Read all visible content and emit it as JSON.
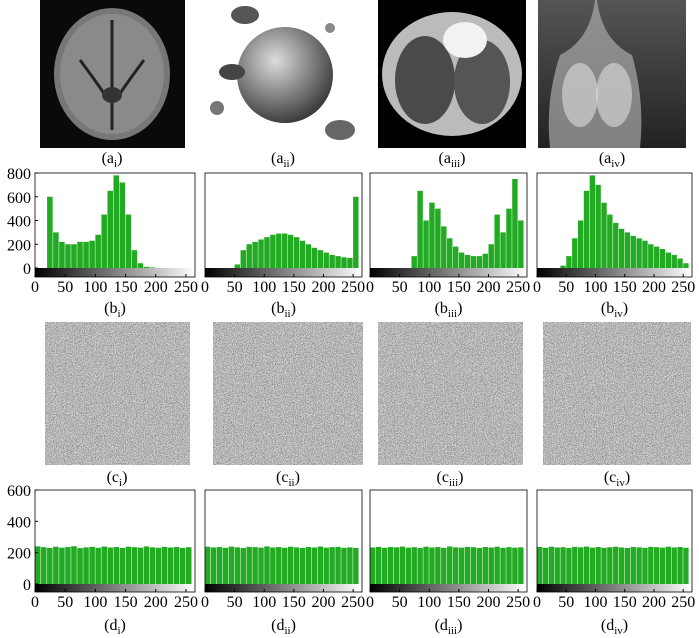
{
  "images_a": [
    {
      "label": {
        "main": "(a",
        "sub": "i",
        "close": ")"
      }
    },
    {
      "label": {
        "main": "(a",
        "sub": "ii",
        "close": ")"
      }
    },
    {
      "label": {
        "main": "(a",
        "sub": "iii",
        "close": ")"
      }
    },
    {
      "label": {
        "main": "(a",
        "sub": "iv",
        "close": ")"
      }
    }
  ],
  "images_c": [
    {
      "label": {
        "main": "(c",
        "sub": "i",
        "close": ")"
      }
    },
    {
      "label": {
        "main": "(c",
        "sub": "ii",
        "close": ")"
      }
    },
    {
      "label": {
        "main": "(c",
        "sub": "iii",
        "close": ")"
      }
    },
    {
      "label": {
        "main": "(c",
        "sub": "iv",
        "close": ")"
      }
    }
  ],
  "chart_data": [
    {
      "type": "histogram",
      "color": "#22aa22",
      "label": {
        "main": "(b",
        "sub": "i",
        "close": ")"
      },
      "bins": [
        0,
        10,
        20,
        30,
        40,
        50,
        60,
        70,
        80,
        90,
        100,
        110,
        120,
        130,
        140,
        150,
        160,
        170,
        180,
        190,
        200,
        210,
        220,
        230,
        240,
        250,
        260
      ],
      "counts": [
        0,
        0,
        600,
        300,
        220,
        200,
        200,
        220,
        220,
        230,
        280,
        450,
        650,
        780,
        720,
        450,
        150,
        40,
        10,
        5,
        0,
        0,
        0,
        0,
        0,
        0
      ],
      "xlim": [
        0,
        265
      ],
      "ylim": [
        0,
        800
      ],
      "xticks": [
        0,
        50,
        100,
        150,
        200,
        250
      ],
      "yticks": [
        0,
        200,
        400,
        600,
        800
      ]
    },
    {
      "type": "histogram",
      "color": "#22aa22",
      "label": {
        "main": "(b",
        "sub": "ii",
        "close": ")"
      },
      "bins": [
        0,
        10,
        20,
        30,
        40,
        50,
        60,
        70,
        80,
        90,
        100,
        110,
        120,
        130,
        140,
        150,
        160,
        170,
        180,
        190,
        200,
        210,
        220,
        230,
        240,
        250,
        260
      ],
      "counts": [
        0,
        0,
        0,
        0,
        0,
        30,
        150,
        200,
        220,
        240,
        260,
        280,
        290,
        290,
        280,
        260,
        230,
        200,
        170,
        150,
        130,
        110,
        100,
        90,
        85,
        600
      ],
      "xlim": [
        0,
        265
      ],
      "ylim": [
        0,
        800
      ],
      "xticks": [
        0,
        50,
        100,
        150,
        200,
        250
      ]
    },
    {
      "type": "histogram",
      "color": "#22aa22",
      "label": {
        "main": "(b",
        "sub": "iii",
        "close": ")"
      },
      "bins": [
        0,
        10,
        20,
        30,
        40,
        50,
        60,
        70,
        80,
        90,
        100,
        110,
        120,
        130,
        140,
        150,
        160,
        170,
        180,
        190,
        200,
        210,
        220,
        230,
        240,
        250,
        260
      ],
      "counts": [
        0,
        0,
        0,
        0,
        0,
        0,
        0,
        100,
        650,
        400,
        550,
        500,
        350,
        250,
        180,
        130,
        110,
        100,
        100,
        120,
        200,
        450,
        300,
        500,
        750,
        400
      ],
      "xlim": [
        0,
        265
      ],
      "ylim": [
        0,
        800
      ],
      "xticks": [
        0,
        50,
        100,
        150,
        200,
        250
      ]
    },
    {
      "type": "histogram",
      "color": "#22aa22",
      "label": {
        "main": "(b",
        "sub": "iv",
        "close": ")"
      },
      "bins": [
        0,
        10,
        20,
        30,
        40,
        50,
        60,
        70,
        80,
        90,
        100,
        110,
        120,
        130,
        140,
        150,
        160,
        170,
        180,
        190,
        200,
        210,
        220,
        230,
        240,
        250,
        260
      ],
      "counts": [
        0,
        0,
        0,
        0,
        20,
        100,
        250,
        400,
        650,
        780,
        700,
        550,
        450,
        380,
        330,
        300,
        270,
        250,
        230,
        200,
        180,
        160,
        130,
        110,
        80,
        40
      ],
      "xlim": [
        0,
        265
      ],
      "ylim": [
        0,
        800
      ],
      "xticks": [
        0,
        50,
        100,
        150,
        200,
        250
      ]
    },
    {
      "type": "histogram",
      "color": "#22aa22",
      "label": {
        "main": "(d",
        "sub": "i",
        "close": ")"
      },
      "bins": [
        0,
        10,
        20,
        30,
        40,
        50,
        60,
        70,
        80,
        90,
        100,
        110,
        120,
        130,
        140,
        150,
        160,
        170,
        180,
        190,
        200,
        210,
        220,
        230,
        240,
        250,
        260
      ],
      "counts": [
        240,
        235,
        230,
        238,
        232,
        236,
        241,
        229,
        234,
        237,
        231,
        239,
        233,
        236,
        230,
        238,
        235,
        232,
        240,
        234,
        231,
        237,
        233,
        236,
        230,
        235
      ],
      "xlim": [
        0,
        265
      ],
      "ylim": [
        0,
        600
      ],
      "xticks": [
        0,
        50,
        100,
        150,
        200,
        250
      ],
      "yticks": [
        0,
        200,
        400,
        600
      ]
    },
    {
      "type": "histogram",
      "color": "#22aa22",
      "label": {
        "main": "(d",
        "sub": "ii",
        "close": ")"
      },
      "bins": [
        0,
        10,
        20,
        30,
        40,
        50,
        60,
        70,
        80,
        90,
        100,
        110,
        120,
        130,
        140,
        150,
        160,
        170,
        180,
        190,
        200,
        210,
        220,
        230,
        240,
        250,
        260
      ],
      "counts": [
        238,
        233,
        236,
        231,
        239,
        234,
        230,
        237,
        235,
        232,
        240,
        233,
        236,
        231,
        238,
        234,
        230,
        236,
        233,
        239,
        232,
        235,
        237,
        231,
        234,
        230
      ],
      "xlim": [
        0,
        265
      ],
      "ylim": [
        0,
        600
      ],
      "xticks": [
        0,
        50,
        100,
        150,
        200,
        250
      ]
    },
    {
      "type": "histogram",
      "color": "#22aa22",
      "label": {
        "main": "(d",
        "sub": "iii",
        "close": ")"
      },
      "bins": [
        0,
        10,
        20,
        30,
        40,
        50,
        60,
        70,
        80,
        90,
        100,
        110,
        120,
        130,
        140,
        150,
        160,
        170,
        180,
        190,
        200,
        210,
        220,
        230,
        240,
        250,
        260
      ],
      "counts": [
        233,
        237,
        231,
        236,
        234,
        239,
        232,
        235,
        230,
        238,
        233,
        236,
        231,
        240,
        234,
        232,
        237,
        235,
        230,
        236,
        233,
        238,
        231,
        235,
        232,
        234
      ],
      "xlim": [
        0,
        265
      ],
      "ylim": [
        0,
        600
      ],
      "xticks": [
        0,
        50,
        100,
        150,
        200,
        250
      ]
    },
    {
      "type": "histogram",
      "color": "#22aa22",
      "label": {
        "main": "(d",
        "sub": "iv",
        "close": ")"
      },
      "bins": [
        0,
        10,
        20,
        30,
        40,
        50,
        60,
        70,
        80,
        90,
        100,
        110,
        120,
        130,
        140,
        150,
        160,
        170,
        180,
        190,
        200,
        210,
        220,
        230,
        240,
        250,
        260
      ],
      "counts": [
        236,
        231,
        238,
        233,
        235,
        230,
        237,
        234,
        239,
        232,
        236,
        231,
        235,
        238,
        233,
        230,
        236,
        234,
        231,
        237,
        235,
        232,
        238,
        233,
        236,
        231
      ],
      "xlim": [
        0,
        265
      ],
      "ylim": [
        0,
        600
      ],
      "xticks": [
        0,
        50,
        100,
        150,
        200,
        250
      ]
    }
  ]
}
